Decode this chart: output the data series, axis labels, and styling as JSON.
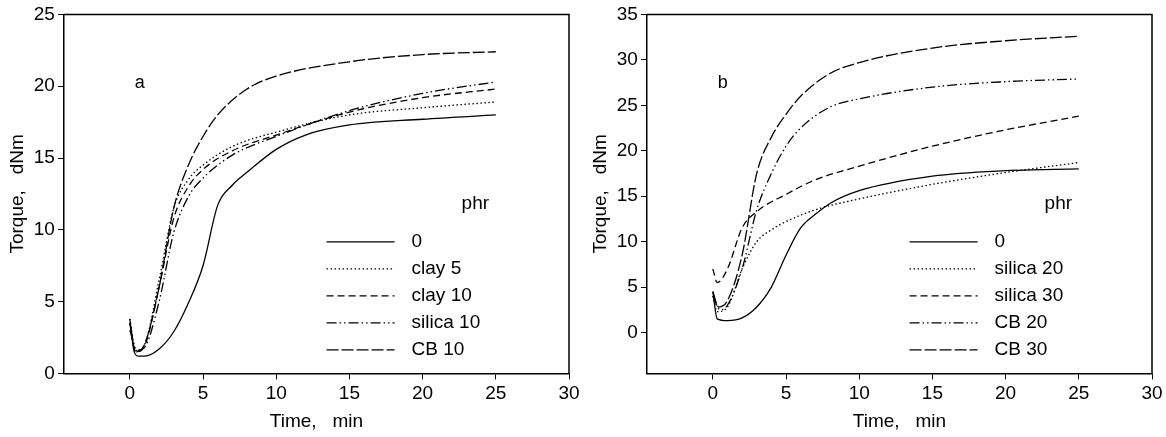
{
  "chart_data": [
    {
      "type": "line",
      "xlabel": "Time,   min",
      "ylabel": "Torque,   dNm",
      "annotations": [
        "a"
      ],
      "legend": "bottom right",
      "legend_title": "phr",
      "grid": false,
      "xlim": [
        -4.5,
        30
      ],
      "xticks": [
        0,
        5,
        10,
        15,
        20,
        25,
        30
      ],
      "ylim": [
        0,
        25
      ],
      "yticks": [
        0,
        5,
        10,
        15,
        20,
        25
      ],
      "series": [
        {
          "name": "0",
          "color": "#000000",
          "line_style": "solid",
          "x": [
            0,
            0.3,
            0.6,
            1,
            2,
            3,
            4,
            5,
            6,
            7,
            8,
            10,
            12,
            15,
            20,
            25
          ],
          "values": [
            3.8,
            1.5,
            1.2,
            1.2,
            1.7,
            2.9,
            4.9,
            7.5,
            11.7,
            13.1,
            14.0,
            15.6,
            16.6,
            17.3,
            17.7,
            18.0
          ]
        },
        {
          "name": "clay 5",
          "color": "#000000",
          "line_style": "dotted",
          "x": [
            0,
            0.4,
            1,
            2,
            3,
            4,
            5,
            7,
            10,
            15,
            20,
            25
          ],
          "values": [
            3.8,
            1.6,
            2.0,
            6.5,
            11.5,
            13.5,
            14.5,
            15.8,
            16.8,
            18.0,
            18.5,
            18.9
          ]
        },
        {
          "name": "clay 10",
          "color": "#000000",
          "line_style": "dashed",
          "x": [
            0,
            0.4,
            1,
            2,
            3,
            4,
            5,
            7,
            10,
            15,
            20,
            25
          ],
          "values": [
            3.5,
            1.5,
            1.9,
            6.0,
            10.8,
            13.0,
            14.2,
            15.5,
            16.6,
            18.2,
            19.2,
            19.8
          ]
        },
        {
          "name": "silica 10",
          "color": "#000000",
          "line_style": "dashdotdot",
          "x": [
            0,
            0.5,
            1,
            2,
            3,
            4,
            5,
            7,
            10,
            15,
            20,
            25
          ],
          "values": [
            3.0,
            1.6,
            1.8,
            5.0,
            9.8,
            12.3,
            13.6,
            15.2,
            16.5,
            18.3,
            19.5,
            20.3
          ]
        },
        {
          "name": "CB 10",
          "color": "#000000",
          "line_style": "longdash",
          "x": [
            0,
            0.4,
            1,
            2,
            3,
            4,
            5,
            6,
            8,
            10,
            15,
            20,
            25
          ],
          "values": [
            3.5,
            1.5,
            2.0,
            6.0,
            11.5,
            14.5,
            16.5,
            18.0,
            19.8,
            20.7,
            21.7,
            22.2,
            22.4
          ]
        }
      ]
    },
    {
      "type": "line",
      "xlabel": "Time,   min",
      "ylabel": "Torque,   dNm",
      "annotations": [
        "b"
      ],
      "legend": "bottom right",
      "legend_title": "phr",
      "grid": false,
      "xlim": [
        -4.5,
        30
      ],
      "xticks": [
        0,
        5,
        10,
        15,
        20,
        25,
        30
      ],
      "ylim": [
        -4.5,
        35
      ],
      "yticks": [
        0,
        5,
        10,
        15,
        20,
        25,
        30,
        35
      ],
      "series": [
        {
          "name": "0",
          "color": "#000000",
          "line_style": "solid",
          "x": [
            0,
            0.3,
            1,
            2,
            3,
            4,
            5,
            6,
            7,
            8,
            10,
            15,
            20,
            25
          ],
          "values": [
            4.5,
            1.5,
            1.3,
            1.6,
            2.8,
            5.0,
            8.5,
            11.5,
            13.0,
            14.2,
            15.6,
            17.2,
            17.8,
            18.0
          ]
        },
        {
          "name": "silica 20",
          "color": "#000000",
          "line_style": "dotted",
          "x": [
            0,
            0.3,
            1,
            2,
            3,
            4,
            5,
            7,
            10,
            15,
            20,
            25
          ],
          "values": [
            4.0,
            2.3,
            2.8,
            7.0,
            10.0,
            11.3,
            12.2,
            13.5,
            14.7,
            16.3,
            17.6,
            18.7
          ]
        },
        {
          "name": "silica 30",
          "color": "#000000",
          "line_style": "dashed",
          "x": [
            0,
            0.3,
            1,
            2,
            3,
            5,
            7,
            10,
            15,
            20,
            25
          ],
          "values": [
            7.0,
            5.5,
            7.0,
            11.5,
            13.3,
            15.2,
            16.8,
            18.3,
            20.5,
            22.3,
            23.8
          ]
        },
        {
          "name": "CB 20",
          "color": "#000000",
          "line_style": "dashdotdot",
          "x": [
            0,
            0.5,
            1,
            2,
            3,
            4,
            5,
            6,
            8,
            10,
            15,
            20,
            25
          ],
          "values": [
            4.0,
            2.5,
            3.0,
            7.0,
            13.5,
            17.5,
            20.5,
            22.5,
            24.8,
            25.7,
            27.0,
            27.6,
            27.9
          ]
        },
        {
          "name": "CB 30",
          "color": "#000000",
          "line_style": "longdash",
          "x": [
            0,
            0.4,
            1,
            2,
            3,
            4,
            5,
            6,
            8,
            10,
            15,
            20,
            25
          ],
          "values": [
            4.5,
            2.8,
            3.5,
            8.5,
            17.5,
            21.5,
            24.0,
            26.0,
            28.5,
            29.7,
            31.3,
            32.1,
            32.6
          ]
        }
      ]
    }
  ]
}
